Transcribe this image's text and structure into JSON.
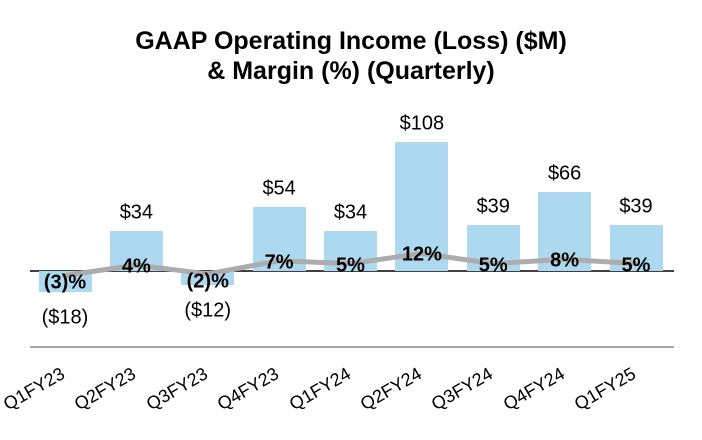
{
  "chart_data": {
    "type": "bar",
    "combo": "bar+line",
    "title_line1": "GAAP Operating Income (Loss) ($M)",
    "title_line2": "& Margin (%) (Quarterly)",
    "categories": [
      "Q1FY23",
      "Q2FY23",
      "Q3FY23",
      "Q4FY23",
      "Q1FY24",
      "Q2FY24",
      "Q3FY24",
      "Q4FY24",
      "Q1FY25"
    ],
    "series": [
      {
        "name": "GAAP Operating Income (Loss) ($M)",
        "type": "bar",
        "values": [
          -18,
          34,
          -12,
          54,
          34,
          108,
          39,
          66,
          39
        ],
        "labels": [
          "($18)",
          "$34",
          "($12)",
          "$54",
          "$34",
          "$108",
          "$39",
          "$66",
          "$39"
        ],
        "color": "#ADD9F0"
      },
      {
        "name": "Margin (%)",
        "type": "line",
        "values": [
          -3,
          4,
          -2,
          7,
          5,
          12,
          5,
          8,
          5
        ],
        "labels": [
          "(3)%",
          "4%",
          "(2)%",
          "7%",
          "5%",
          "12%",
          "5%",
          "8%",
          "5%"
        ],
        "color": "#ACACAC"
      }
    ],
    "legend": "none",
    "grid": "off",
    "axes": {
      "value_axis_visible": false,
      "secondary_axis_visible": false,
      "category_label_rotation_deg": 30,
      "zero_line_color": "#404040",
      "category_axis_line_color": "#A6A6A6"
    },
    "text_color": "#000000",
    "background_color": "#FFFFFF"
  }
}
